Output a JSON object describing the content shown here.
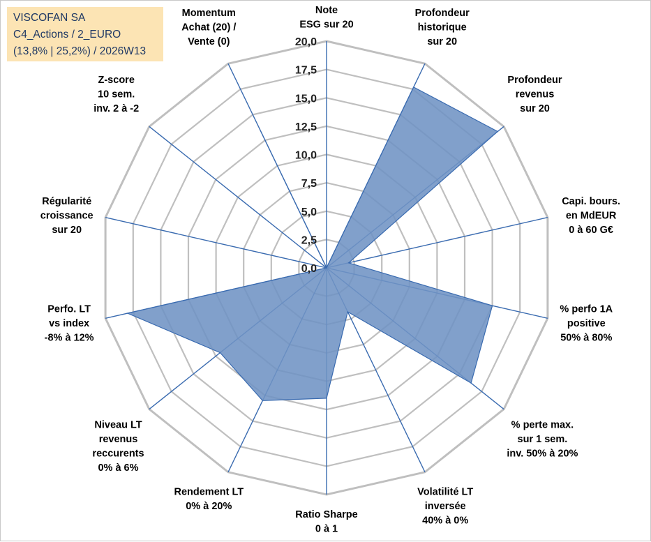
{
  "header": {
    "line1": "VISCOFAN SA",
    "line2": "C4_Actions / 2_EURO",
    "line3": "(13,8% | 25,2%) / 2026W13"
  },
  "colors": {
    "fill": "#6f93c4",
    "stroke": "#3a6bb0",
    "grid": "#bfbfbf",
    "spoke": "#3a6bb0"
  },
  "chart_data": {
    "type": "radar",
    "rmin": 0,
    "rmax": 20,
    "ticks": [
      "0,0",
      "2,5",
      "5,0",
      "7,5",
      "10,0",
      "12,5",
      "15,0",
      "17,5",
      "20,0"
    ],
    "axes": [
      [
        "Note",
        "ESG sur 20"
      ],
      [
        "Profondeur",
        "historique",
        "sur 20"
      ],
      [
        "Profondeur",
        "revenus",
        "sur 20"
      ],
      [
        "Capi. bours.",
        "en MdEUR",
        "0 à 60 G€"
      ],
      [
        "% perfo 1A",
        "positive",
        "50% à 80%"
      ],
      [
        "% perte max.",
        "sur 1 sem.",
        "inv. 50% à 20%"
      ],
      [
        "Volatilité LT",
        "inversée",
        "40% à 0%"
      ],
      [
        "Ratio Sharpe",
        "0 à 1"
      ],
      [
        "Rendement LT",
        "0% à 20%"
      ],
      [
        "Niveau LT",
        "revenus",
        "reccurents",
        "0% à 6%"
      ],
      [
        "Perfo. LT",
        "vs index",
        "-8% à 12%"
      ],
      [
        "Régularité",
        "croissance",
        "sur 20"
      ],
      [
        "Z-score",
        "10 sem.",
        "inv. 2 à -2"
      ],
      [
        "Momentum",
        "Achat (20) /",
        "Vente (0)"
      ]
    ],
    "values": [
      0,
      17.7,
      19.3,
      2.0,
      15.0,
      16.3,
      4.3,
      11.5,
      13.0,
      12.0,
      18.0,
      0,
      0,
      13.4
    ],
    "grid": true,
    "legend": "none"
  }
}
